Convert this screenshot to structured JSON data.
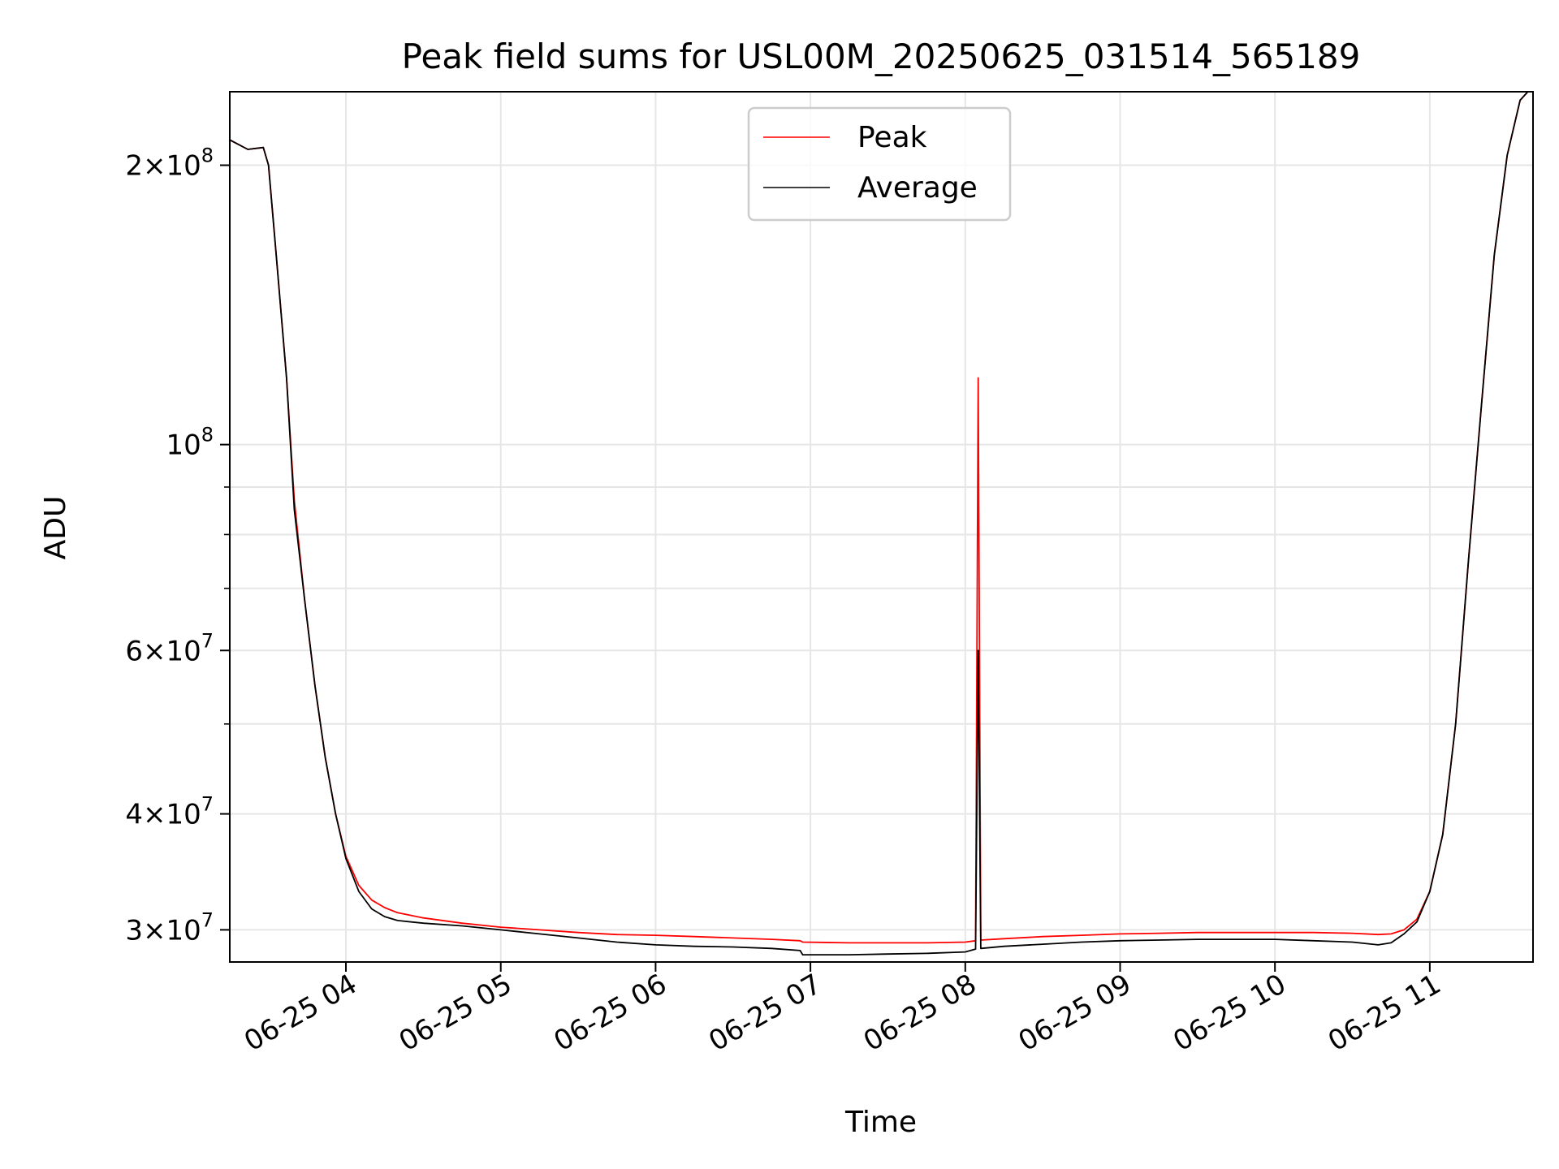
{
  "chart_data": {
    "type": "line",
    "title": "Peak field sums for USL00M_20250625_031514_565189",
    "xlabel": "Time",
    "ylabel": "ADU",
    "yscale": "log",
    "ylim": [
      27700000,
      240000000
    ],
    "xlim": [
      "2025-06-25 03:15",
      "2025-06-25 11:40"
    ],
    "grid": true,
    "legend_position": "top-center",
    "x_ticks": [
      {
        "value": "2025-06-25 04:00",
        "label": "06-25 04"
      },
      {
        "value": "2025-06-25 05:00",
        "label": "06-25 05"
      },
      {
        "value": "2025-06-25 06:00",
        "label": "06-25 06"
      },
      {
        "value": "2025-06-25 07:00",
        "label": "06-25 07"
      },
      {
        "value": "2025-06-25 08:00",
        "label": "06-25 08"
      },
      {
        "value": "2025-06-25 09:00",
        "label": "06-25 09"
      },
      {
        "value": "2025-06-25 10:00",
        "label": "06-25 10"
      },
      {
        "value": "2025-06-25 11:00",
        "label": "06-25 11"
      }
    ],
    "y_ticks": [
      {
        "value": 200000000,
        "mantissa": "2",
        "exp": "8"
      },
      {
        "value": 100000000,
        "mantissa": "",
        "exp": "8"
      },
      {
        "value": 60000000,
        "mantissa": "6",
        "exp": "7"
      },
      {
        "value": 40000000,
        "mantissa": "4",
        "exp": "7"
      },
      {
        "value": 30000000,
        "mantissa": "3",
        "exp": "7"
      }
    ],
    "y_minor_ticks": [
      50000000,
      70000000,
      80000000,
      90000000
    ],
    "series": [
      {
        "name": "Peak",
        "color": "#ff0000",
        "x": [
          "2025-06-25 03:15",
          "2025-06-25 03:22",
          "2025-06-25 03:28",
          "2025-06-25 03:30",
          "2025-06-25 03:33",
          "2025-06-25 03:37",
          "2025-06-25 03:40",
          "2025-06-25 03:44",
          "2025-06-25 03:48",
          "2025-06-25 03:52",
          "2025-06-25 03:56",
          "2025-06-25 04:00",
          "2025-06-25 04:05",
          "2025-06-25 04:10",
          "2025-06-25 04:15",
          "2025-06-25 04:20",
          "2025-06-25 04:30",
          "2025-06-25 04:45",
          "2025-06-25 05:00",
          "2025-06-25 05:15",
          "2025-06-25 05:30",
          "2025-06-25 05:45",
          "2025-06-25 06:00",
          "2025-06-25 06:15",
          "2025-06-25 06:30",
          "2025-06-25 06:45",
          "2025-06-25 06:56",
          "2025-06-25 06:57",
          "2025-06-25 07:15",
          "2025-06-25 07:30",
          "2025-06-25 07:45",
          "2025-06-25 08:00",
          "2025-06-25 08:04",
          "2025-06-25 08:05",
          "2025-06-25 08:06",
          "2025-06-25 08:15",
          "2025-06-25 08:30",
          "2025-06-25 08:45",
          "2025-06-25 09:00",
          "2025-06-25 09:15",
          "2025-06-25 09:30",
          "2025-06-25 09:45",
          "2025-06-25 10:00",
          "2025-06-25 10:15",
          "2025-06-25 10:30",
          "2025-06-25 10:40",
          "2025-06-25 10:45",
          "2025-06-25 10:50",
          "2025-06-25 10:55",
          "2025-06-25 11:00",
          "2025-06-25 11:05",
          "2025-06-25 11:10",
          "2025-06-25 11:15",
          "2025-06-25 11:20",
          "2025-06-25 11:25",
          "2025-06-25 11:30",
          "2025-06-25 11:35",
          "2025-06-25 11:38"
        ],
        "values": [
          213000000,
          208000000,
          209000000,
          200000000,
          160000000,
          118000000,
          87000000,
          68000000,
          55000000,
          46000000,
          40000000,
          36000000,
          33500000,
          32300000,
          31700000,
          31300000,
          30900000,
          30500000,
          30200000,
          30000000,
          29800000,
          29650000,
          29600000,
          29500000,
          29400000,
          29300000,
          29200000,
          29100000,
          29050000,
          29050000,
          29050000,
          29100000,
          29200000,
          118000000,
          29250000,
          29350000,
          29500000,
          29600000,
          29700000,
          29750000,
          29800000,
          29800000,
          29800000,
          29800000,
          29750000,
          29650000,
          29700000,
          30000000,
          30800000,
          33000000,
          38000000,
          50000000,
          75000000,
          110000000,
          160000000,
          205000000,
          235000000,
          240000000
        ]
      },
      {
        "name": "Average",
        "color": "#000000",
        "x": [
          "2025-06-25 03:15",
          "2025-06-25 03:22",
          "2025-06-25 03:28",
          "2025-06-25 03:30",
          "2025-06-25 03:33",
          "2025-06-25 03:37",
          "2025-06-25 03:40",
          "2025-06-25 03:44",
          "2025-06-25 03:48",
          "2025-06-25 03:52",
          "2025-06-25 03:56",
          "2025-06-25 04:00",
          "2025-06-25 04:05",
          "2025-06-25 04:10",
          "2025-06-25 04:15",
          "2025-06-25 04:20",
          "2025-06-25 04:30",
          "2025-06-25 04:45",
          "2025-06-25 05:00",
          "2025-06-25 05:15",
          "2025-06-25 05:30",
          "2025-06-25 05:45",
          "2025-06-25 06:00",
          "2025-06-25 06:15",
          "2025-06-25 06:30",
          "2025-06-25 06:45",
          "2025-06-25 06:56",
          "2025-06-25 06:57",
          "2025-06-25 07:15",
          "2025-06-25 07:30",
          "2025-06-25 07:45",
          "2025-06-25 08:00",
          "2025-06-25 08:04",
          "2025-06-25 08:05",
          "2025-06-25 08:06",
          "2025-06-25 08:15",
          "2025-06-25 08:30",
          "2025-06-25 08:45",
          "2025-06-25 09:00",
          "2025-06-25 09:15",
          "2025-06-25 09:30",
          "2025-06-25 09:45",
          "2025-06-25 10:00",
          "2025-06-25 10:15",
          "2025-06-25 10:30",
          "2025-06-25 10:40",
          "2025-06-25 10:45",
          "2025-06-25 10:50",
          "2025-06-25 10:55",
          "2025-06-25 11:00",
          "2025-06-25 11:05",
          "2025-06-25 11:10",
          "2025-06-25 11:15",
          "2025-06-25 11:20",
          "2025-06-25 11:25",
          "2025-06-25 11:30",
          "2025-06-25 11:35",
          "2025-06-25 11:38"
        ],
        "values": [
          213000000,
          208000000,
          209000000,
          200000000,
          160000000,
          118000000,
          85000000,
          68000000,
          55000000,
          46000000,
          40000000,
          35800000,
          33000000,
          31600000,
          31000000,
          30700000,
          30500000,
          30300000,
          30000000,
          29700000,
          29400000,
          29100000,
          28900000,
          28800000,
          28750000,
          28650000,
          28500000,
          28200000,
          28200000,
          28250000,
          28300000,
          28400000,
          28600000,
          60000000,
          28650000,
          28800000,
          28950000,
          29100000,
          29200000,
          29250000,
          29300000,
          29300000,
          29300000,
          29200000,
          29100000,
          28900000,
          29050000,
          29700000,
          30600000,
          33000000,
          38000000,
          50000000,
          75000000,
          110000000,
          160000000,
          205000000,
          235000000,
          240000000
        ]
      }
    ]
  }
}
